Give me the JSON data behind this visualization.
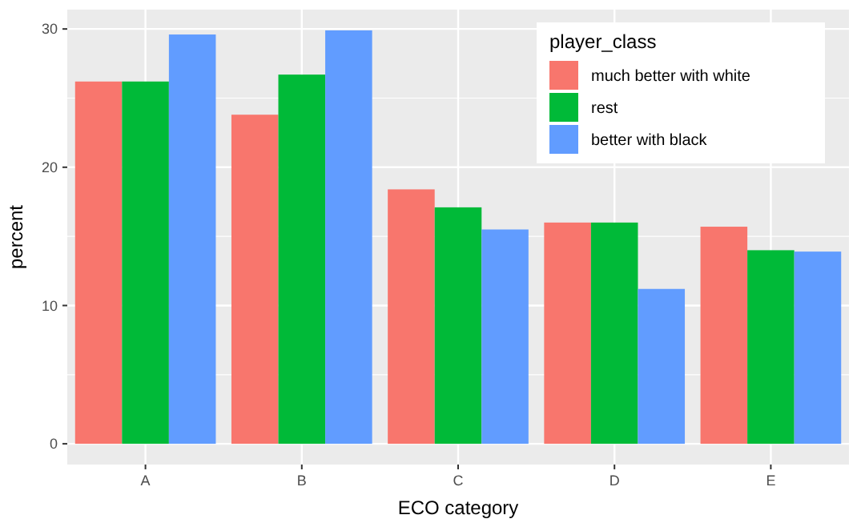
{
  "chart_data": {
    "type": "bar",
    "xlabel": "ECO category",
    "ylabel": "percent",
    "legend_title": "player_class",
    "categories": [
      "A",
      "B",
      "C",
      "D",
      "E"
    ],
    "series": [
      {
        "name": "much better with white",
        "color": "#f8766d",
        "values": [
          26.2,
          23.8,
          18.4,
          16.0,
          15.7
        ]
      },
      {
        "name": "rest",
        "color": "#00ba38",
        "values": [
          26.2,
          26.7,
          17.1,
          16.0,
          14.0
        ]
      },
      {
        "name": "better with black",
        "color": "#619cff",
        "values": [
          29.6,
          29.9,
          15.5,
          11.2,
          13.9
        ]
      }
    ],
    "ylim": [
      -1.5,
      31.4
    ],
    "yticks": [
      0,
      10,
      20,
      30
    ],
    "grid": true,
    "legend": "top right"
  }
}
